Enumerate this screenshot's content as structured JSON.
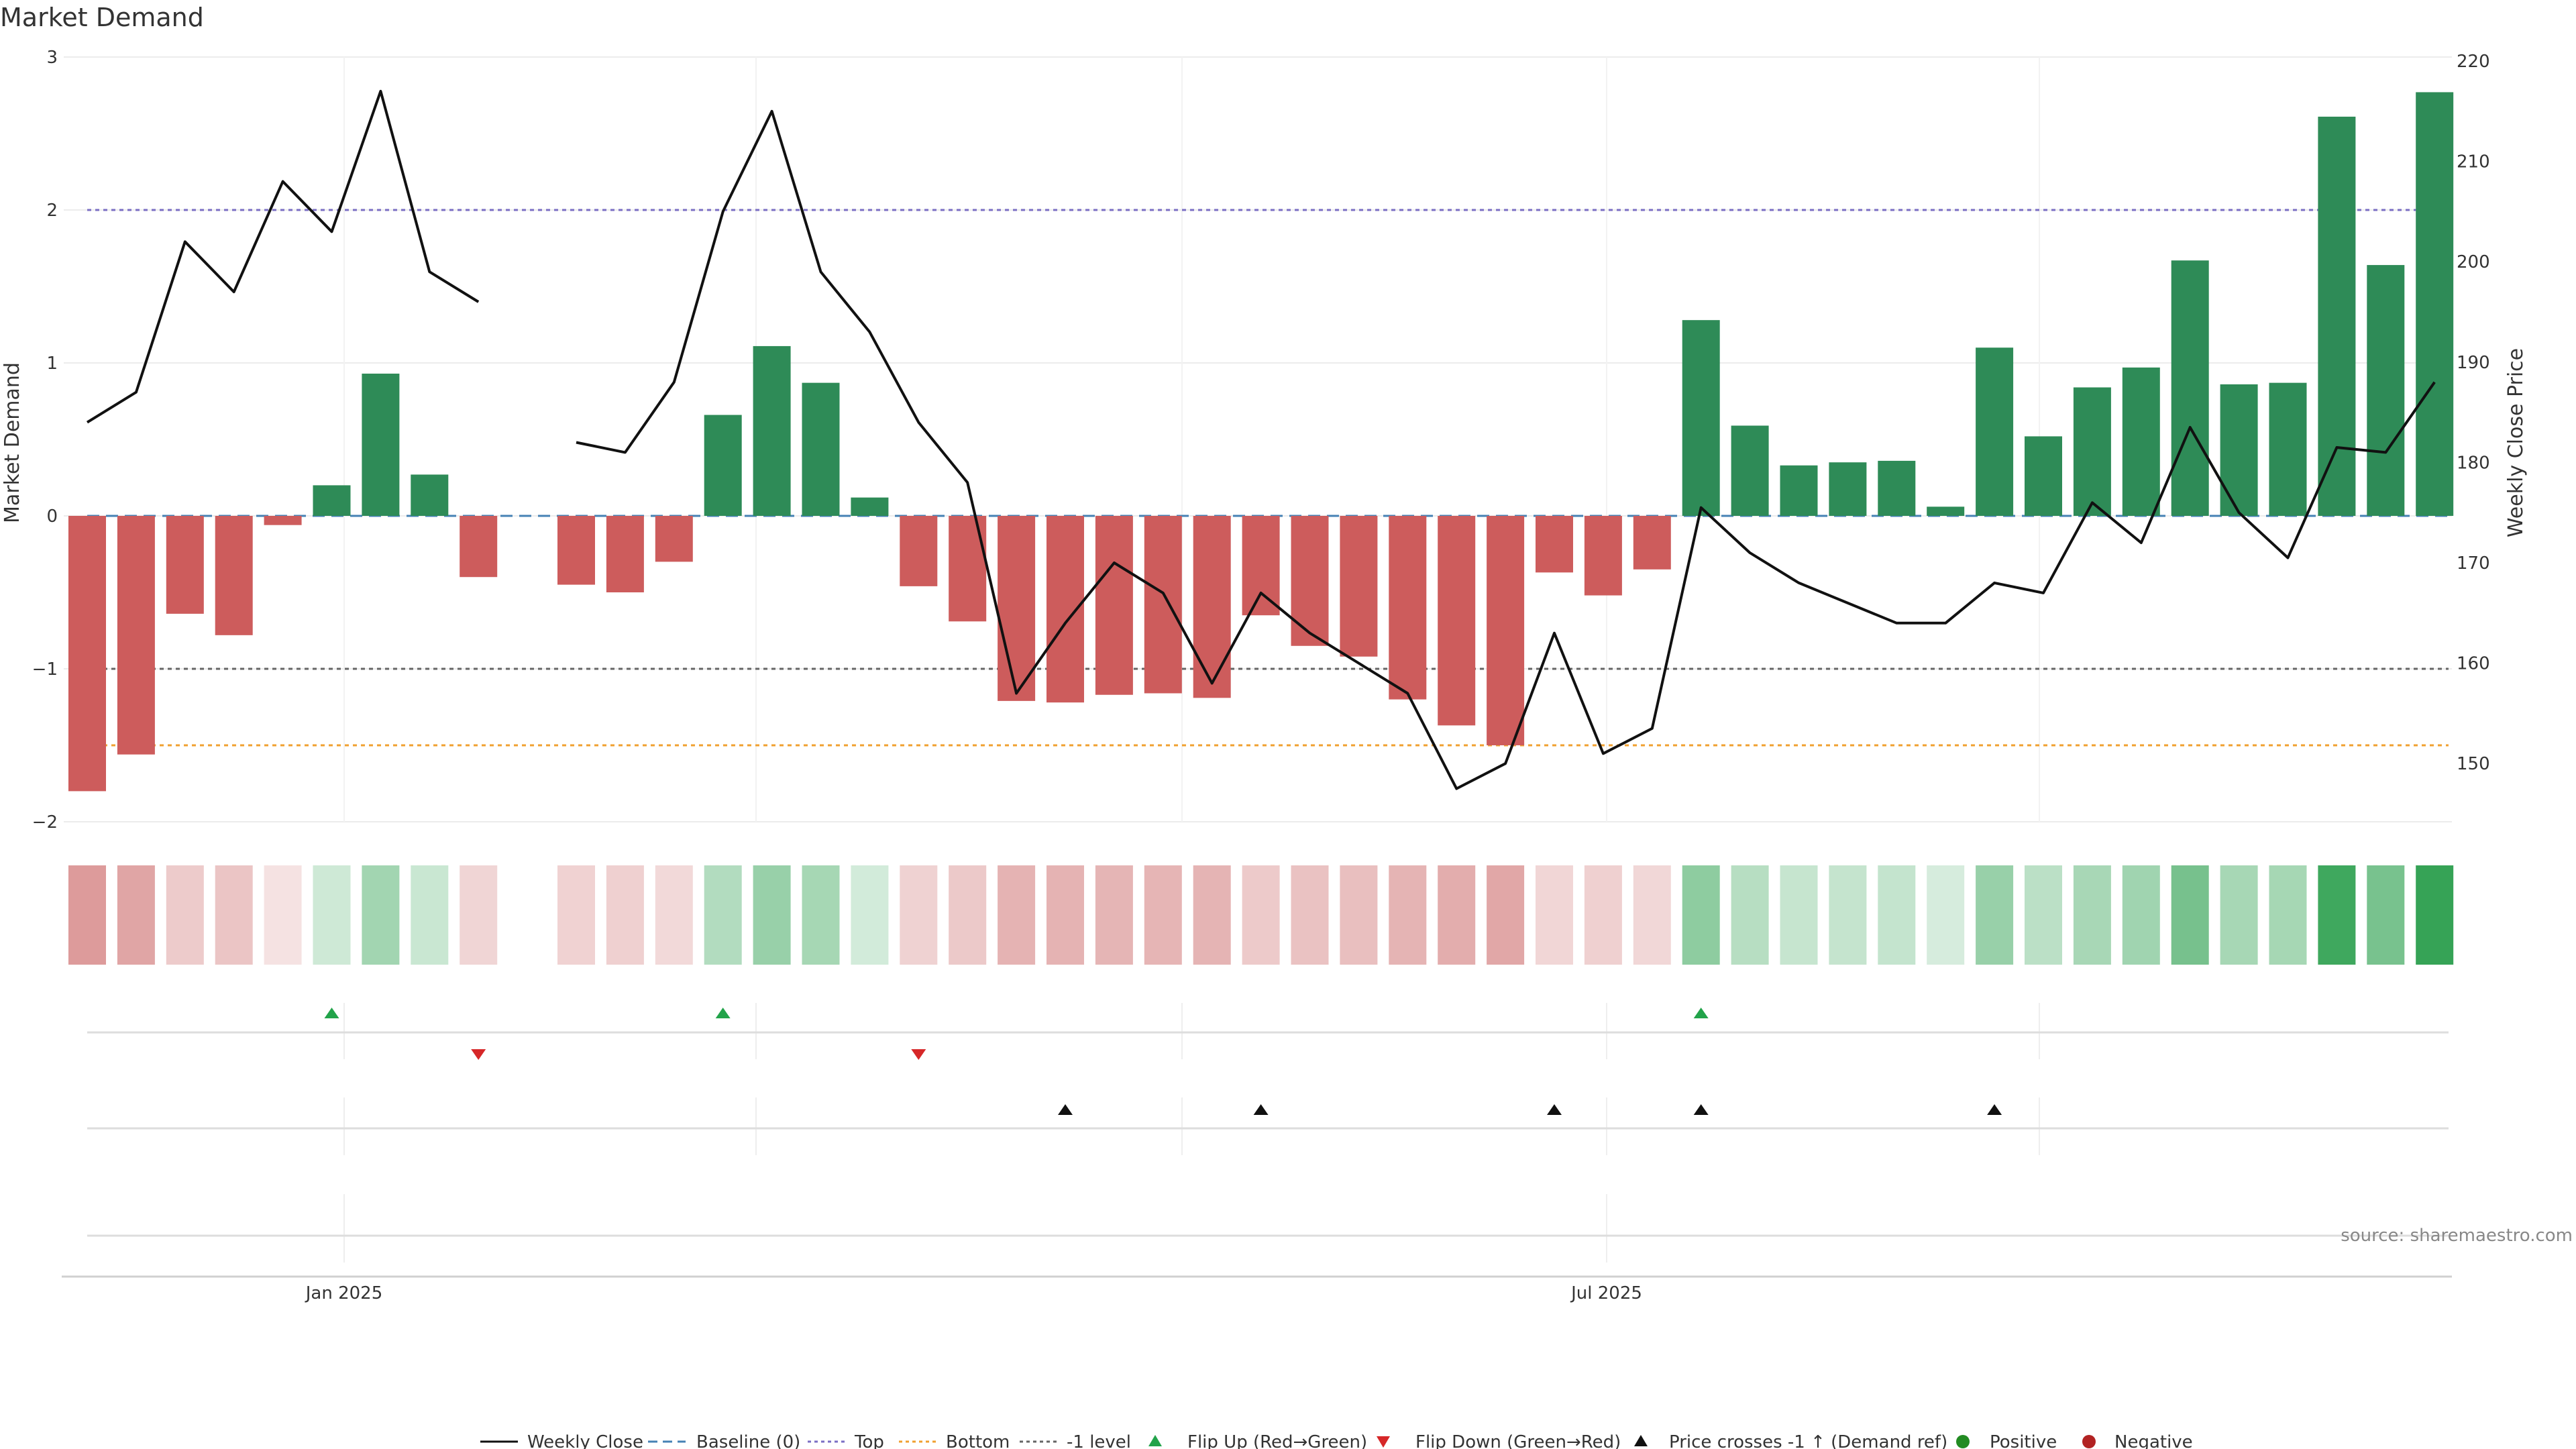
{
  "chart_data": {
    "type": "bar+line",
    "title": "Market Demand",
    "ylabel_left": "Market Demand",
    "ylabel_right": "Weekly Close Price",
    "ylim_left": [
      -2,
      3
    ],
    "ylim_right": [
      144.2,
      220.4
    ],
    "yticks_left": [
      "3",
      "2",
      "1",
      "0",
      "−1",
      "−2"
    ],
    "yticks_right": [
      "220",
      "210",
      "200",
      "190",
      "180",
      "170",
      "160",
      "150"
    ],
    "xticks": [
      "Jan 2025",
      "Jul 2025"
    ],
    "demand": [
      -1.8,
      -1.56,
      -0.64,
      -0.78,
      -0.06,
      0.2,
      0.93,
      0.27,
      -0.4,
      null,
      -0.45,
      -0.5,
      -0.3,
      0.66,
      1.11,
      0.87,
      0.12,
      -0.46,
      -0.69,
      -1.21,
      -1.22,
      -1.17,
      -1.16,
      -1.19,
      -0.65,
      -0.85,
      -0.92,
      -1.2,
      -1.37,
      -1.5,
      -0.37,
      -0.52,
      -0.35,
      1.28,
      0.59,
      0.33,
      0.35,
      0.36,
      0.06,
      1.1,
      0.52,
      0.84,
      0.97,
      1.67,
      0.86,
      0.87,
      2.61,
      1.64,
      2.77
    ],
    "weekly_close": [
      184,
      187,
      202,
      197,
      208,
      203,
      217,
      199,
      196,
      null,
      182,
      181,
      188,
      205,
      215,
      199,
      193,
      184,
      178,
      157,
      164,
      170,
      167,
      158,
      167,
      163,
      160,
      157,
      147.5,
      150,
      163,
      151,
      153.5,
      175.5,
      171,
      168,
      166,
      164,
      164,
      168,
      167,
      176,
      172,
      183.5,
      175,
      170.5,
      181.5,
      181,
      188
    ],
    "levels": {
      "top": 2,
      "bottom": -1.5,
      "minus_one": -1,
      "baseline": 0
    },
    "flip_up_weeks": [
      5,
      13,
      33
    ],
    "flip_down_weeks": [
      8,
      17
    ],
    "price_crosses_weeks": [
      20,
      24,
      30,
      33,
      39
    ],
    "legend": [
      "Weekly Close",
      "Baseline (0)",
      "Top",
      "Bottom",
      "-1 level",
      "Flip Up (Red→Green)",
      "Flip Down (Green→Red)",
      "Price crosses -1 ↑ (Demand ref)",
      "Positive",
      "Negative"
    ],
    "source": "source: sharemaestro.com"
  },
  "colors": {
    "positive": "#2e8b57",
    "negative": "#cd5c5c",
    "line": "#111111",
    "top": "#7b6fc4",
    "bottom": "#f0a030",
    "minus_one": "#666666",
    "baseline": "#4682b4",
    "flip_up": "#22a34a",
    "flip_down": "#d62728",
    "cross": "#111111"
  }
}
